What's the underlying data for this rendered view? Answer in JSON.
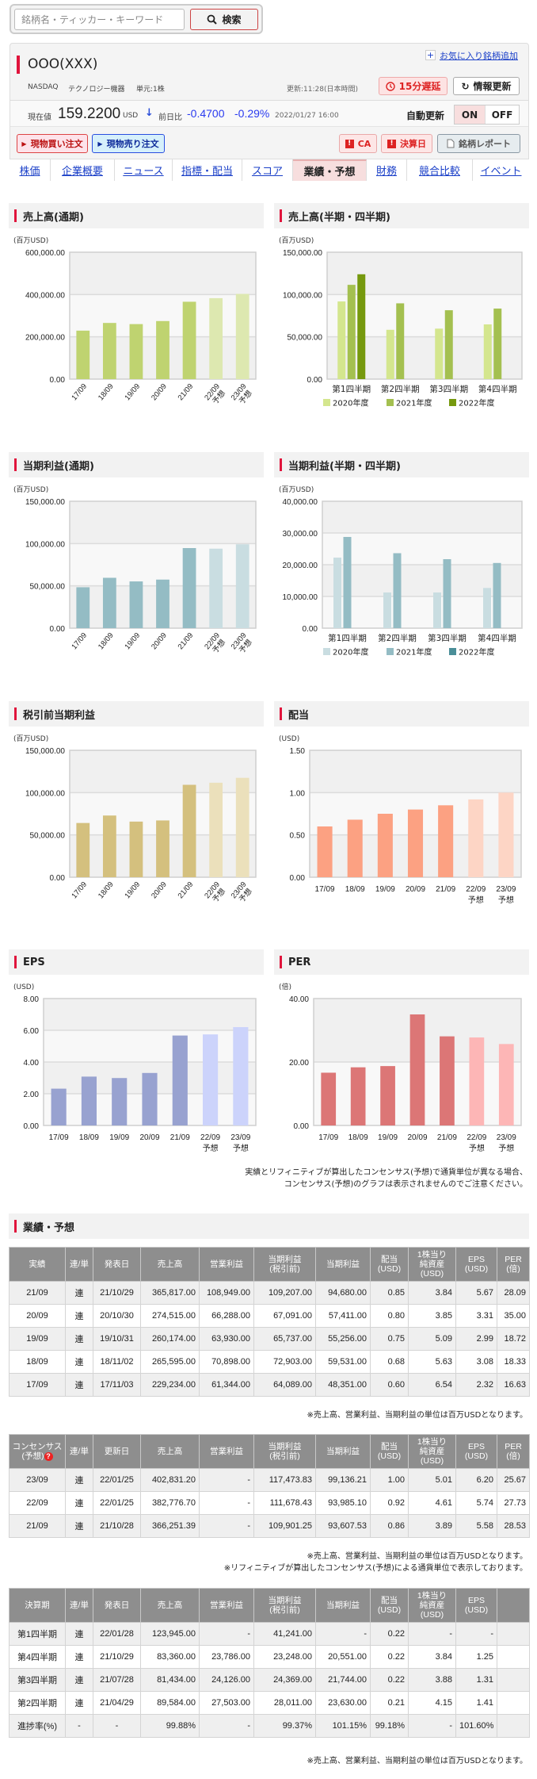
{
  "search": {
    "placeholder": "銘柄名・ティッカー・キーワード",
    "button": "検索"
  },
  "stock": {
    "name": "OOO(XXX)",
    "favorite_label": "お気に入り銘柄追加",
    "market": "NASDAQ",
    "industry": "テクノロジー機器",
    "unit": "単元:1株",
    "updated": "更新:11:28(日本時間)",
    "delay_label": "15分遅延",
    "refresh_label": "情報更新",
    "price_label": "現在値",
    "price": "159.2200",
    "currency": "USD",
    "change_label": "前日比",
    "change": "-0.4700",
    "change_pct": "-0.29%",
    "datetime": "2022/01/27 16:00",
    "auto_update_label": "自動更新",
    "on": "ON",
    "off": "OFF",
    "buy_label": "現物買い注文",
    "sell_label": "現物売り注文",
    "ca_label": "CA",
    "earnings_label": "決算日",
    "report_label": "銘柄レポート"
  },
  "tabs": [
    {
      "label": "株価",
      "active": false
    },
    {
      "label": "企業概要",
      "active": false
    },
    {
      "label": "ニュース",
      "active": false
    },
    {
      "label": "指標・配当",
      "active": false
    },
    {
      "label": "スコア",
      "active": false
    },
    {
      "label": "業績・予想",
      "active": true
    },
    {
      "label": "財務",
      "active": false
    },
    {
      "label": "競合比較",
      "active": false
    },
    {
      "label": "イベント",
      "active": false
    }
  ],
  "chart_data": [
    {
      "id": "sales_annual",
      "type": "bar",
      "title": "売上高(通期)",
      "unit": "(百万USD)",
      "label_style": "rotated",
      "categories": [
        "17/09",
        "18/09",
        "19/09",
        "20/09",
        "21/09",
        "22/09",
        "23/09"
      ],
      "forecast": [
        false,
        false,
        false,
        false,
        false,
        true,
        true
      ],
      "forecast_label": "予想",
      "values": [
        229234,
        265595,
        260174,
        274515,
        365817,
        382776.7,
        402831.2
      ],
      "ylim": [
        0,
        600000
      ],
      "yticks": [
        0,
        200000,
        400000,
        600000
      ],
      "ytick_labels": [
        "0.00",
        "200,000.00",
        "400,000.00",
        "600,000.00"
      ],
      "color": "#bfd370",
      "forecast_color": "#dde8b0"
    },
    {
      "id": "sales_quarter",
      "type": "bar",
      "title": "売上高(半期・四半期)",
      "unit": "(百万USD)",
      "categories": [
        "第1四半期",
        "第2四半期",
        "第3四半期",
        "第4四半期"
      ],
      "series": [
        {
          "name": "2020年度",
          "values": [
            91819,
            58313,
            59685,
            64698
          ],
          "color": "#d4e68e"
        },
        {
          "name": "2021年度",
          "values": [
            111439,
            89584,
            81434,
            83360
          ],
          "color": "#a4c050"
        },
        {
          "name": "2022年度",
          "values": [
            123945,
            null,
            null,
            null
          ],
          "color": "#76990e"
        }
      ],
      "ylim": [
        0,
        150000
      ],
      "yticks": [
        0,
        50000,
        100000,
        150000
      ],
      "ytick_labels": [
        "0.00",
        "50,000.00",
        "100,000.00",
        "150,000.00"
      ],
      "legend": "bottom"
    },
    {
      "id": "ni_annual",
      "type": "bar",
      "title": "当期利益(通期)",
      "unit": "(百万USD)",
      "label_style": "rotated",
      "categories": [
        "17/09",
        "18/09",
        "19/09",
        "20/09",
        "21/09",
        "22/09",
        "23/09"
      ],
      "forecast": [
        false,
        false,
        false,
        false,
        false,
        true,
        true
      ],
      "forecast_label": "予想",
      "values": [
        48351,
        59531,
        55256,
        57411,
        94680,
        93985.1,
        99136.21
      ],
      "ylim": [
        0,
        150000
      ],
      "yticks": [
        0,
        50000,
        100000,
        150000
      ],
      "ytick_labels": [
        "0.00",
        "50,000.00",
        "100,000.00",
        "150,000.00"
      ],
      "color": "#94bcc4",
      "forecast_color": "#c9dde1"
    },
    {
      "id": "ni_quarter",
      "type": "bar",
      "title": "当期利益(半期・四半期)",
      "unit": "(百万USD)",
      "categories": [
        "第1四半期",
        "第2四半期",
        "第3四半期",
        "第4四半期"
      ],
      "series": [
        {
          "name": "2020年度",
          "values": [
            22236,
            11249,
            11253,
            12673
          ],
          "color": "#c9dde1"
        },
        {
          "name": "2021年度",
          "values": [
            28755,
            23630,
            21744,
            20551
          ],
          "color": "#94bcc4"
        },
        {
          "name": "2022年度",
          "values": [
            null,
            null,
            null,
            null
          ],
          "color": "#4a8e98"
        }
      ],
      "ylim": [
        0,
        40000
      ],
      "yticks": [
        0,
        10000,
        20000,
        30000,
        40000
      ],
      "ytick_labels": [
        "0.00",
        "10,000.00",
        "20,000.00",
        "30,000.00",
        "40,000.00"
      ],
      "legend": "bottom"
    },
    {
      "id": "pretax_annual",
      "type": "bar",
      "title": "税引前当期利益",
      "unit": "(百万USD)",
      "label_style": "rotated",
      "categories": [
        "17/09",
        "18/09",
        "19/09",
        "20/09",
        "21/09",
        "22/09",
        "23/09"
      ],
      "forecast": [
        false,
        false,
        false,
        false,
        false,
        true,
        true
      ],
      "forecast_label": "予想",
      "values": [
        64089,
        72903,
        65737,
        67091,
        109207,
        111678.43,
        117473.83
      ],
      "ylim": [
        0,
        150000
      ],
      "yticks": [
        0,
        50000,
        100000,
        150000
      ],
      "ytick_labels": [
        "0.00",
        "50,000.00",
        "100,000.00",
        "150,000.00"
      ],
      "color": "#d4c07e",
      "forecast_color": "#ebe0bb"
    },
    {
      "id": "dividend",
      "type": "bar",
      "title": "配当",
      "unit": "(USD)",
      "label_style": "horizontal",
      "categories": [
        "17/09",
        "18/09",
        "19/09",
        "20/09",
        "21/09",
        "22/09",
        "23/09"
      ],
      "forecast": [
        false,
        false,
        false,
        false,
        false,
        true,
        true
      ],
      "forecast_label": "予想",
      "values": [
        0.6,
        0.68,
        0.75,
        0.8,
        0.85,
        0.92,
        1.0
      ],
      "ylim": [
        0,
        1.5
      ],
      "yticks": [
        0,
        0.5,
        1.0,
        1.5
      ],
      "ytick_labels": [
        "0.00",
        "0.50",
        "1.00",
        "1.50"
      ],
      "color": "#fca182",
      "forecast_color": "#fdd5c5"
    },
    {
      "id": "eps",
      "type": "bar",
      "title": "EPS",
      "unit": "(USD)",
      "label_style": "horizontal",
      "categories": [
        "17/09",
        "18/09",
        "19/09",
        "20/09",
        "21/09",
        "22/09",
        "23/09"
      ],
      "forecast": [
        false,
        false,
        false,
        false,
        false,
        true,
        true
      ],
      "forecast_label": "予想",
      "values": [
        2.32,
        3.08,
        2.99,
        3.31,
        5.67,
        5.74,
        6.2
      ],
      "ylim": [
        0,
        8
      ],
      "yticks": [
        0,
        2,
        4,
        6,
        8
      ],
      "ytick_labels": [
        "0.00",
        "2.00",
        "4.00",
        "6.00",
        "8.00"
      ],
      "color": "#98a2d0",
      "forecast_color": "#ccd3fb"
    },
    {
      "id": "per",
      "type": "bar",
      "title": "PER",
      "unit": "(倍)",
      "label_style": "horizontal",
      "categories": [
        "17/09",
        "18/09",
        "19/09",
        "20/09",
        "21/09",
        "22/09",
        "23/09"
      ],
      "forecast": [
        false,
        false,
        false,
        false,
        false,
        true,
        true
      ],
      "forecast_label": "予想",
      "values": [
        16.63,
        18.33,
        18.72,
        35.0,
        28.09,
        27.73,
        25.67
      ],
      "ylim": [
        0,
        40
      ],
      "yticks": [
        0,
        20,
        40
      ],
      "ytick_labels": [
        "0.00",
        "20.00",
        "40.00"
      ],
      "color": "#dc7676",
      "forecast_color": "#fdb6b6"
    }
  ],
  "chart_note": [
    "実績とリフィニティブが算出したコンセンサス(予想)で通貨単位が異なる場合、",
    "コンセンサス(予想)のグラフは表示されませんのでご注意ください。"
  ],
  "results": {
    "title": "業績・予想",
    "table1": {
      "headers": [
        "実績",
        "連/単",
        "発表日",
        "売上高",
        "営業利益",
        "当期利益\n(税引前)",
        "当期利益",
        "配当\n(USD)",
        "1株当り\n純資産\n(USD)",
        "EPS\n(USD)",
        "PER\n(倍)"
      ],
      "rows": [
        [
          "21/09",
          "連",
          "21/10/29",
          "365,817.00",
          "108,949.00",
          "109,207.00",
          "94,680.00",
          "0.85",
          "3.84",
          "5.67",
          "28.09"
        ],
        [
          "20/09",
          "連",
          "20/10/30",
          "274,515.00",
          "66,288.00",
          "67,091.00",
          "57,411.00",
          "0.80",
          "3.85",
          "3.31",
          "35.00"
        ],
        [
          "19/09",
          "連",
          "19/10/31",
          "260,174.00",
          "63,930.00",
          "65,737.00",
          "55,256.00",
          "0.75",
          "5.09",
          "2.99",
          "18.72"
        ],
        [
          "18/09",
          "連",
          "18/11/02",
          "265,595.00",
          "70,898.00",
          "72,903.00",
          "59,531.00",
          "0.68",
          "5.63",
          "3.08",
          "18.33"
        ],
        [
          "17/09",
          "連",
          "17/11/03",
          "229,234.00",
          "61,344.00",
          "64,089.00",
          "48,351.00",
          "0.60",
          "6.54",
          "2.32",
          "16.63"
        ]
      ]
    },
    "note1": "※売上高、営業利益、当期利益の単位は百万USDとなります。",
    "table2": {
      "headers": [
        "コンセンサス\n(予想)",
        "連/単",
        "更新日",
        "売上高",
        "営業利益",
        "当期利益\n(税引前)",
        "当期利益",
        "配当\n(USD)",
        "1株当り\n純資産\n(USD)",
        "EPS\n(USD)",
        "PER\n(倍)"
      ],
      "rows": [
        [
          "23/09",
          "連",
          "22/01/25",
          "402,831.20",
          "-",
          "117,473.83",
          "99,136.21",
          "1.00",
          "5.01",
          "6.20",
          "25.67"
        ],
        [
          "22/09",
          "連",
          "22/01/25",
          "382,776.70",
          "-",
          "111,678.43",
          "93,985.10",
          "0.92",
          "4.61",
          "5.74",
          "27.73"
        ],
        [
          "21/09",
          "連",
          "21/10/28",
          "366,251.39",
          "-",
          "109,901.25",
          "93,607.53",
          "0.86",
          "3.89",
          "5.58",
          "28.53"
        ]
      ]
    },
    "note2": [
      "※売上高、営業利益、当期利益の単位は百万USDとなります。",
      "※リフィニティブが算出したコンセンサス(予想)による通貨単位で表示しております。"
    ],
    "table3": {
      "headers": [
        "決算期",
        "連/単",
        "発表日",
        "売上高",
        "営業利益",
        "当期利益\n(税引前)",
        "当期利益",
        "配当\n(USD)",
        "1株当り\n純資産\n(USD)",
        "EPS\n(USD)",
        ""
      ],
      "rows": [
        [
          "第1四半期",
          "連",
          "22/01/28",
          "123,945.00",
          "-",
          "41,241.00",
          "-",
          "0.22",
          "-",
          "-",
          ""
        ],
        [
          "第4四半期",
          "連",
          "21/10/29",
          "83,360.00",
          "23,786.00",
          "23,248.00",
          "20,551.00",
          "0.22",
          "3.84",
          "1.25",
          ""
        ],
        [
          "第3四半期",
          "連",
          "21/07/28",
          "81,434.00",
          "24,126.00",
          "24,369.00",
          "21,744.00",
          "0.22",
          "3.88",
          "1.31",
          ""
        ],
        [
          "第2四半期",
          "連",
          "21/04/29",
          "89,584.00",
          "27,503.00",
          "28,011.00",
          "23,630.00",
          "0.21",
          "4.15",
          "1.41",
          ""
        ],
        [
          "進捗率(%)",
          "-",
          "-",
          "99.88%",
          "-",
          "99.37%",
          "101.15%",
          "99.18%",
          "-",
          "101.60%",
          ""
        ]
      ]
    },
    "note3": "※売上高、営業利益、当期利益の単位は百万USDとなります。"
  }
}
